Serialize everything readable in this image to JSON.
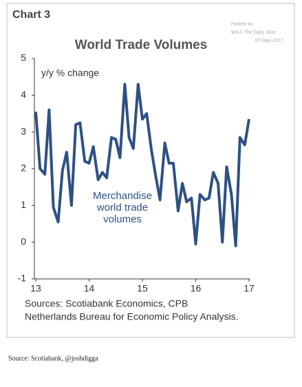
{
  "chart_data": {
    "type": "line",
    "header": "Chart 3",
    "credit": [
      "Posted on",
      "WSJ: The Daily Shot",
      "07-May-2017"
    ],
    "title": "World Trade Volumes",
    "y_label": "y/y % change",
    "annotation": [
      "Merchandise",
      "world trade",
      "volumes"
    ],
    "sources": [
      "Sources: Scotiabank Economics, CPB",
      "Netherlands Bureau for Economic Policy Analysis."
    ],
    "x": [
      13,
      13.08,
      13.17,
      13.25,
      13.33,
      13.42,
      13.5,
      13.58,
      13.67,
      13.75,
      13.83,
      13.92,
      14,
      14.08,
      14.17,
      14.25,
      14.33,
      14.42,
      14.5,
      14.58,
      14.67,
      14.75,
      14.83,
      14.92,
      15,
      15.08,
      15.17,
      15.25,
      15.33,
      15.42,
      15.5,
      15.58,
      15.67,
      15.75,
      15.83,
      15.92,
      16,
      16.08,
      16.17,
      16.25,
      16.33,
      16.42,
      16.5,
      16.58,
      16.67,
      16.75,
      16.83,
      16.92,
      17
    ],
    "series": [
      {
        "color": "#2e5184",
        "values": [
          3.55,
          2.0,
          1.85,
          3.6,
          0.95,
          0.55,
          1.95,
          2.45,
          1.0,
          3.2,
          3.25,
          2.2,
          2.15,
          2.6,
          1.7,
          1.9,
          1.75,
          2.85,
          2.8,
          2.3,
          4.3,
          2.85,
          2.55,
          4.3,
          3.35,
          3.5,
          2.5,
          1.8,
          1.15,
          2.7,
          2.15,
          2.15,
          0.85,
          1.6,
          1.1,
          1.2,
          -0.05,
          1.3,
          1.15,
          1.2,
          1.9,
          1.6,
          0.0,
          2.05,
          1.3,
          -0.1,
          2.85,
          2.65,
          3.35
        ]
      }
    ],
    "xlim": [
      13,
      17
    ],
    "xticks": [
      13,
      14,
      15,
      16,
      17
    ],
    "ylim": [
      -1,
      5
    ],
    "yticks": [
      -1,
      0,
      1,
      2,
      3,
      4,
      5
    ]
  },
  "caption": "Source: Scotiabank, @joshdigga"
}
